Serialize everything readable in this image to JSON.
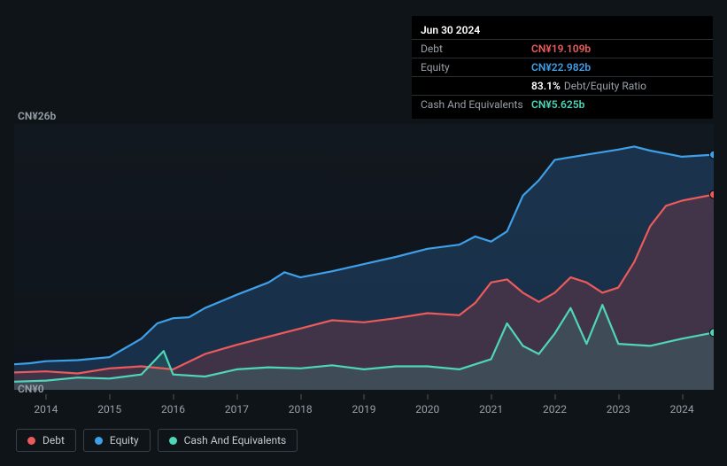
{
  "tooltip": {
    "date": "Jun 30 2024",
    "rows": [
      {
        "label": "Debt",
        "value": "CN¥19.109b",
        "class": "debt"
      },
      {
        "label": "Equity",
        "value": "CN¥22.982b",
        "class": "equity"
      },
      {
        "label": "",
        "value": "83.1%",
        "suffix": "Debt/Equity Ratio",
        "class": "ratio"
      },
      {
        "label": "Cash And Equivalents",
        "value": "CN¥5.625b",
        "class": "cash"
      }
    ]
  },
  "chart": {
    "type": "area-line",
    "background_color": "#0f1419",
    "plot_bg_top": "rgba(30,40,55,0.2)",
    "plot_bg_bottom": "rgba(15,20,30,0.45)",
    "y_max_label": "CN¥26b",
    "y_min_label": "CN¥0",
    "ylim": [
      0,
      26
    ],
    "xlim": [
      2013.5,
      2024.5
    ],
    "x_ticks": [
      2014,
      2015,
      2016,
      2017,
      2018,
      2019,
      2020,
      2021,
      2022,
      2023,
      2024
    ],
    "series": {
      "equity": {
        "color": "#3ea0e8",
        "fill": "rgba(44,100,160,0.35)",
        "line_width": 2.2,
        "points": [
          [
            2013.5,
            2.5
          ],
          [
            2013.75,
            2.6
          ],
          [
            2014.0,
            2.8
          ],
          [
            2014.5,
            2.9
          ],
          [
            2015.0,
            3.2
          ],
          [
            2015.5,
            5.0
          ],
          [
            2015.75,
            6.5
          ],
          [
            2016.0,
            7.0
          ],
          [
            2016.25,
            7.1
          ],
          [
            2016.5,
            8.0
          ],
          [
            2017.0,
            9.3
          ],
          [
            2017.5,
            10.5
          ],
          [
            2017.75,
            11.5
          ],
          [
            2018.0,
            11.0
          ],
          [
            2018.5,
            11.6
          ],
          [
            2019.0,
            12.3
          ],
          [
            2019.5,
            13.0
          ],
          [
            2020.0,
            13.8
          ],
          [
            2020.5,
            14.2
          ],
          [
            2020.75,
            15.0
          ],
          [
            2021.0,
            14.5
          ],
          [
            2021.25,
            15.5
          ],
          [
            2021.5,
            19.0
          ],
          [
            2021.75,
            20.5
          ],
          [
            2022.0,
            22.5
          ],
          [
            2022.5,
            23.0
          ],
          [
            2023.0,
            23.5
          ],
          [
            2023.25,
            23.8
          ],
          [
            2023.5,
            23.4
          ],
          [
            2024.0,
            22.8
          ],
          [
            2024.5,
            23.0
          ]
        ]
      },
      "debt": {
        "color": "#eb5b5b",
        "fill": "rgba(160,60,70,0.30)",
        "line_width": 2.2,
        "points": [
          [
            2013.5,
            1.7
          ],
          [
            2014.0,
            1.8
          ],
          [
            2014.5,
            1.6
          ],
          [
            2015.0,
            2.1
          ],
          [
            2015.5,
            2.3
          ],
          [
            2016.0,
            2.0
          ],
          [
            2016.5,
            3.5
          ],
          [
            2017.0,
            4.4
          ],
          [
            2017.5,
            5.2
          ],
          [
            2018.0,
            6.0
          ],
          [
            2018.5,
            6.8
          ],
          [
            2019.0,
            6.6
          ],
          [
            2019.5,
            7.0
          ],
          [
            2020.0,
            7.5
          ],
          [
            2020.5,
            7.3
          ],
          [
            2020.75,
            8.5
          ],
          [
            2021.0,
            10.5
          ],
          [
            2021.25,
            10.8
          ],
          [
            2021.5,
            9.5
          ],
          [
            2021.75,
            8.6
          ],
          [
            2022.0,
            9.5
          ],
          [
            2022.25,
            11.0
          ],
          [
            2022.5,
            10.5
          ],
          [
            2022.75,
            9.5
          ],
          [
            2023.0,
            10.0
          ],
          [
            2023.25,
            12.5
          ],
          [
            2023.5,
            16.0
          ],
          [
            2023.75,
            18.0
          ],
          [
            2024.0,
            18.5
          ],
          [
            2024.5,
            19.1
          ]
        ]
      },
      "cash": {
        "color": "#4fd6b8",
        "fill": "rgba(60,150,130,0.25)",
        "line_width": 2.2,
        "points": [
          [
            2013.5,
            0.8
          ],
          [
            2014.0,
            0.9
          ],
          [
            2014.5,
            1.2
          ],
          [
            2015.0,
            1.1
          ],
          [
            2015.5,
            1.5
          ],
          [
            2015.85,
            3.8
          ],
          [
            2016.0,
            1.5
          ],
          [
            2016.5,
            1.3
          ],
          [
            2017.0,
            2.0
          ],
          [
            2017.5,
            2.2
          ],
          [
            2018.0,
            2.1
          ],
          [
            2018.5,
            2.4
          ],
          [
            2019.0,
            2.0
          ],
          [
            2019.5,
            2.3
          ],
          [
            2020.0,
            2.3
          ],
          [
            2020.5,
            2.0
          ],
          [
            2021.0,
            3.0
          ],
          [
            2021.25,
            6.5
          ],
          [
            2021.5,
            4.3
          ],
          [
            2021.75,
            3.5
          ],
          [
            2022.0,
            5.5
          ],
          [
            2022.25,
            8.0
          ],
          [
            2022.5,
            4.5
          ],
          [
            2022.75,
            8.3
          ],
          [
            2023.0,
            4.5
          ],
          [
            2023.5,
            4.3
          ],
          [
            2024.0,
            5.0
          ],
          [
            2024.5,
            5.6
          ]
        ]
      }
    },
    "markers_x": 2024.5,
    "label_fontsize": 12,
    "label_color": "#9aa0a8"
  },
  "legend": {
    "border_color": "#3a4049",
    "items": [
      {
        "label": "Debt",
        "color": "#eb5b5b",
        "key": "debt"
      },
      {
        "label": "Equity",
        "color": "#3ea0e8",
        "key": "equity"
      },
      {
        "label": "Cash And Equivalents",
        "color": "#4fd6b8",
        "key": "cash"
      }
    ]
  }
}
